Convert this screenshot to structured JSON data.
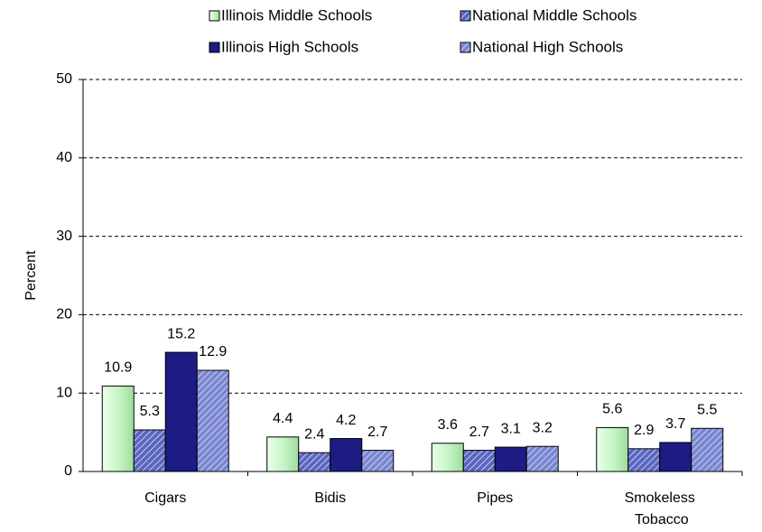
{
  "chart_data": {
    "type": "bar",
    "y_label": "Percent",
    "categories": [
      "Cigars",
      "Bidis",
      "Pipes",
      "Smokeless Tobacco"
    ],
    "series": [
      {
        "name": "Illinois Middle Schools",
        "color": "#c8f5c8",
        "pattern": "gradient",
        "values": [
          10.9,
          4.4,
          3.6,
          5.6
        ]
      },
      {
        "name": "National Middle Schools",
        "color": "#5a66c0",
        "pattern": "hatch",
        "values": [
          5.3,
          2.4,
          2.7,
          2.9
        ]
      },
      {
        "name": "Illinois High Schools",
        "color": "#1c1c84",
        "pattern": "solid",
        "values": [
          15.2,
          4.2,
          3.1,
          3.7
        ]
      },
      {
        "name": "National High Schools",
        "color": "#7a86d0",
        "pattern": "hatch",
        "values": [
          12.9,
          2.7,
          3.2,
          5.5
        ]
      }
    ],
    "ylim": [
      0,
      50
    ],
    "yticks": [
      0,
      10,
      20,
      30,
      40,
      50
    ],
    "grid": true,
    "legend": "top"
  }
}
